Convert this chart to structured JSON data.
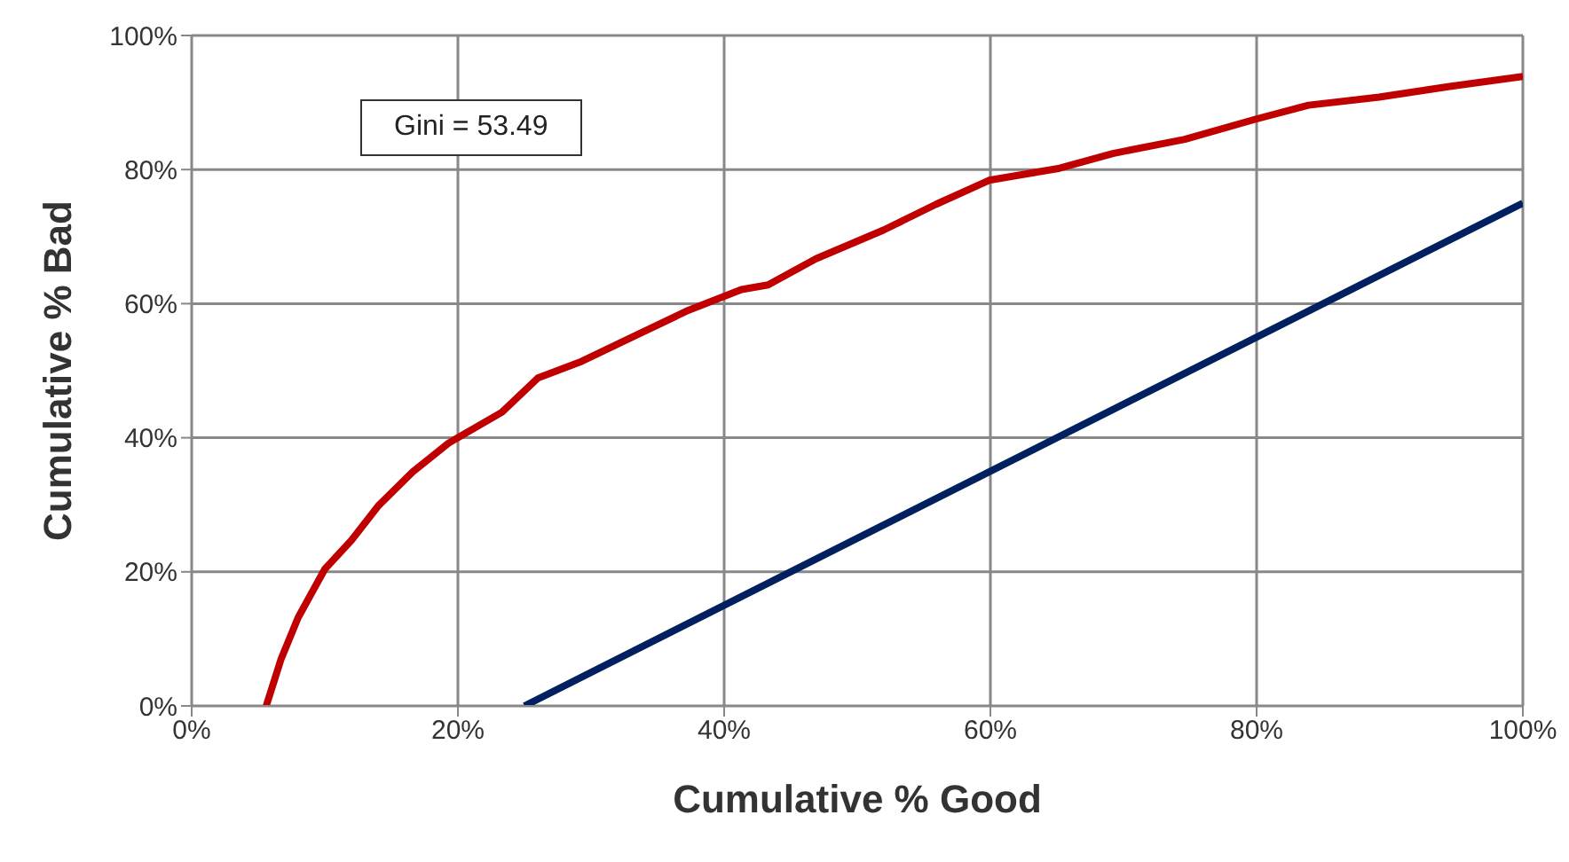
{
  "chart_data": {
    "type": "line",
    "xlabel": "Cumulative % Good",
    "ylabel": "Cumulative % Bad",
    "annotations": [
      "Gini = 53.49"
    ],
    "xlim": [
      0,
      100
    ],
    "ylim": [
      0,
      100
    ],
    "xticks": [
      {
        "value": 0,
        "label": "0%"
      },
      {
        "value": 20,
        "label": "20%"
      },
      {
        "value": 40,
        "label": "40%"
      },
      {
        "value": 60,
        "label": "60%"
      },
      {
        "value": 80,
        "label": "80%"
      },
      {
        "value": 100,
        "label": "100%"
      }
    ],
    "yticks": [
      {
        "value": 0,
        "label": "0%"
      },
      {
        "value": 20,
        "label": "20%"
      },
      {
        "value": 40,
        "label": "40%"
      },
      {
        "value": 60,
        "label": "60%"
      },
      {
        "value": 80,
        "label": "80%"
      },
      {
        "value": 100,
        "label": "100%"
      }
    ],
    "grid": true,
    "marker": "none",
    "line_style": "solid",
    "series": [
      {
        "color": "#c00000",
        "x": [
          5.6,
          6.7,
          8,
          10,
          12,
          14,
          16.6,
          19.3,
          23.3,
          26,
          29.3,
          33.3,
          37.3,
          41.3,
          43.3,
          46.9,
          52,
          55.9,
          59.9,
          65.2,
          69.2,
          74.6,
          79.9,
          83.9,
          89.2,
          94.5,
          100
        ],
        "values": [
          0,
          6.9,
          13.2,
          20.4,
          24.7,
          29.8,
          34.9,
          39.2,
          43.8,
          48.9,
          51.4,
          55.2,
          59,
          62.1,
          62.8,
          66.7,
          71,
          74.8,
          78.4,
          80.2,
          82.4,
          84.5,
          87.5,
          89.6,
          90.8,
          92.4,
          93.9
        ]
      },
      {
        "color": "#002060",
        "x": [
          25,
          100
        ],
        "values": [
          0,
          75
        ]
      }
    ]
  }
}
